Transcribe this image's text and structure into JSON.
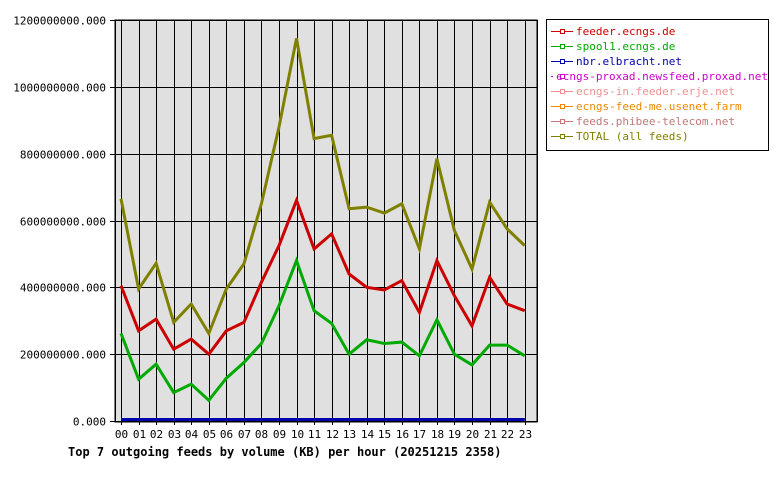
{
  "chart_data": {
    "type": "line",
    "title": "Top 7 outgoing feeds by volume (KB) per hour (20251215 2358)",
    "xlabel": "",
    "ylabel": "",
    "ylim": [
      0,
      1200000000
    ],
    "yticks": [
      "0.000",
      "200000000.000",
      "400000000.000",
      "600000000.000",
      "800000000.000",
      "1000000000.000",
      "1200000000.000"
    ],
    "grid": true,
    "legend_position": "right",
    "categories": [
      "00",
      "01",
      "02",
      "03",
      "04",
      "05",
      "06",
      "07",
      "08",
      "09",
      "10",
      "11",
      "12",
      "13",
      "14",
      "15",
      "16",
      "17",
      "18",
      "19",
      "20",
      "21",
      "22",
      "23"
    ],
    "series": [
      {
        "name": "feeder.ecngs.de",
        "color": "#cc0000",
        "values": [
          405000000,
          270000000,
          305000000,
          215000000,
          245000000,
          200000000,
          270000000,
          295000000,
          415000000,
          525000000,
          660000000,
          515000000,
          560000000,
          440000000,
          400000000,
          392000000,
          420000000,
          325000000,
          480000000,
          375000000,
          285000000,
          430000000,
          350000000,
          330000000
        ]
      },
      {
        "name": "spool1.ecngs.de",
        "color": "#00aa00",
        "values": [
          262000000,
          125000000,
          170000000,
          85000000,
          110000000,
          62000000,
          128000000,
          175000000,
          232000000,
          345000000,
          480000000,
          330000000,
          292000000,
          200000000,
          243000000,
          232000000,
          236000000,
          195000000,
          303000000,
          200000000,
          168000000,
          227000000,
          227000000,
          195000000
        ]
      },
      {
        "name": "nbr.elbracht.net",
        "color": "#0000aa",
        "values": [
          0,
          0,
          0,
          0,
          0,
          0,
          0,
          0,
          0,
          0,
          0,
          0,
          0,
          0,
          0,
          0,
          0,
          0,
          0,
          0,
          0,
          0,
          0,
          0
        ]
      },
      {
        "name": "ecngs-proxad.newsfeed.proxad.net",
        "color": "#cc00cc",
        "values": [
          0,
          0,
          0,
          0,
          0,
          0,
          0,
          0,
          0,
          0,
          0,
          0,
          0,
          0,
          0,
          0,
          0,
          0,
          0,
          0,
          0,
          0,
          0,
          0
        ]
      },
      {
        "name": "ecngs-in.feeder.erje.net",
        "color": "#f09090",
        "values": [
          0,
          0,
          0,
          0,
          0,
          0,
          0,
          0,
          0,
          0,
          0,
          0,
          0,
          0,
          0,
          0,
          0,
          0,
          0,
          0,
          0,
          0,
          0,
          0
        ]
      },
      {
        "name": "ecngs-feed-me.usenet.farm",
        "color": "#ee8800",
        "values": [
          0,
          0,
          0,
          0,
          0,
          0,
          0,
          0,
          0,
          0,
          0,
          0,
          0,
          0,
          0,
          0,
          0,
          0,
          0,
          0,
          0,
          0,
          0,
          0
        ]
      },
      {
        "name": "feeds.phibee-telecom.net",
        "color": "#c07878",
        "values": [
          0,
          0,
          0,
          0,
          0,
          0,
          0,
          0,
          0,
          0,
          0,
          0,
          0,
          0,
          0,
          0,
          0,
          0,
          0,
          0,
          0,
          0,
          0,
          0
        ]
      },
      {
        "name": "TOTAL (all feeds)",
        "color": "#808000",
        "values": [
          665000000,
          395000000,
          472000000,
          295000000,
          350000000,
          262000000,
          395000000,
          470000000,
          650000000,
          880000000,
          1145000000,
          845000000,
          855000000,
          635000000,
          640000000,
          622000000,
          650000000,
          515000000,
          785000000,
          570000000,
          455000000,
          655000000,
          575000000,
          525000000
        ]
      }
    ]
  },
  "legend": {
    "items": [
      {
        "label": "feeder.ecngs.de",
        "color": "#cc0000"
      },
      {
        "label": "spool1.ecngs.de",
        "color": "#00aa00"
      },
      {
        "label": "nbr.elbracht.net",
        "color": "#0000aa"
      },
      {
        "label": "ecngs-proxad.newsfeed.proxad.net",
        "color": "#cc00cc"
      },
      {
        "label": "ecngs-in.feeder.erje.net",
        "color": "#f09090"
      },
      {
        "label": "ecngs-feed-me.usenet.farm",
        "color": "#ee8800"
      },
      {
        "label": "feeds.phibee-telecom.net",
        "color": "#c07878"
      },
      {
        "label": "TOTAL (all feeds)",
        "color": "#808000"
      }
    ]
  },
  "colors": {
    "plot_background": "#e0e0e0",
    "grid": "#000000"
  }
}
